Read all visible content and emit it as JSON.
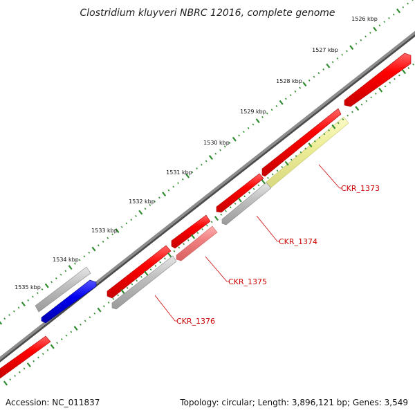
{
  "title": "Clostridium kluyveri NBRC 12016, complete genome",
  "accession_text": "Accession: NC_011837",
  "summary_text": "Topology: circular; Length: 3,896,121 bp; Genes: 3,549",
  "colors": {
    "backbone": "#808080",
    "minor_tick": "#2e8b2e",
    "gene_red": "#ee0000",
    "gene_pink": "#f08080",
    "gene_gray": "#bdbdbd",
    "gene_blue": "#0000ee",
    "gene_yellow": "#eeee99",
    "label": "#cc0000"
  },
  "kbp_ticks": [
    {
      "kbp": 1526,
      "label": "1526 kbp"
    },
    {
      "kbp": 1527,
      "label": "1527 kbp"
    },
    {
      "kbp": 1528,
      "label": "1528 kbp"
    },
    {
      "kbp": 1529,
      "label": "1529 kbp"
    },
    {
      "kbp": 1530,
      "label": "1530 kbp"
    },
    {
      "kbp": 1531,
      "label": "1531 kbp"
    },
    {
      "kbp": 1532,
      "label": "1532 kbp"
    },
    {
      "kbp": 1533,
      "label": "1533 kbp"
    },
    {
      "kbp": 1534,
      "label": "1534 kbp"
    },
    {
      "kbp": 1535,
      "label": "1535 kbp"
    }
  ],
  "gene_labels": [
    {
      "id": "CKR_1373",
      "text": "CKR_1373"
    },
    {
      "id": "CKR_1374",
      "text": "CKR_1374"
    },
    {
      "id": "CKR_1375",
      "text": "CKR_1375"
    },
    {
      "id": "CKR_1376",
      "text": "CKR_1376"
    }
  ]
}
